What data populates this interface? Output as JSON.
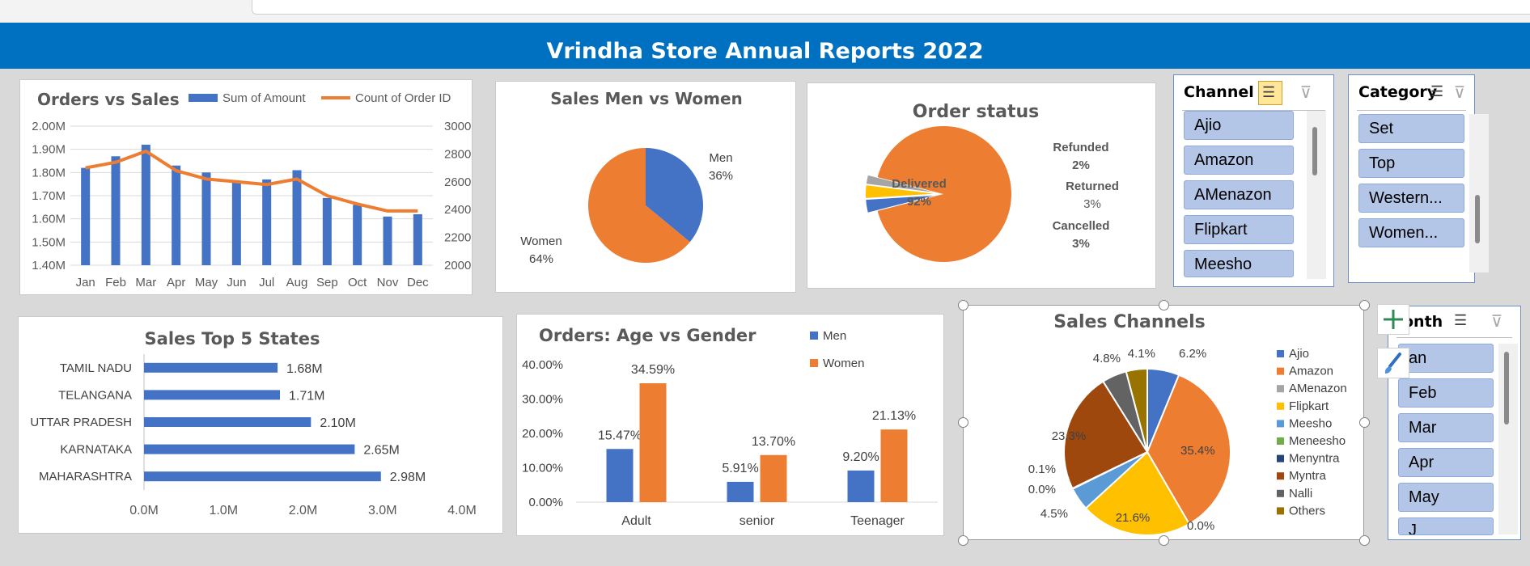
{
  "page": {
    "title": "Vrindha Store Annual Reports 2022"
  },
  "colors": {
    "blue": "#4472c4",
    "orange": "#ed7d31",
    "gray": "#a5a5a5",
    "yellow": "#ffc000",
    "lightblue": "#5b9bd5",
    "green": "#70ad47",
    "navy": "#264478",
    "brown": "#9e480e",
    "darkgray": "#636363",
    "olive": "#997300",
    "header": "#0070c0",
    "slicer_item": "#b4c6e7"
  },
  "chart_data": [
    {
      "type": "bar",
      "title": "Orders vs Sales",
      "categories": [
        "Jan",
        "Feb",
        "Mar",
        "Apr",
        "May",
        "Jun",
        "Jul",
        "Aug",
        "Sep",
        "Oct",
        "Nov",
        "Dec"
      ],
      "series": [
        {
          "name": "Sum of Amount",
          "type": "bar",
          "axis": "left",
          "values": [
            1.82,
            1.87,
            1.92,
            1.83,
            1.8,
            1.76,
            1.77,
            1.81,
            1.69,
            1.66,
            1.61,
            1.62
          ]
        },
        {
          "name": "Count of Order ID",
          "type": "line",
          "axis": "right",
          "values": [
            2700,
            2740,
            2820,
            2680,
            2620,
            2600,
            2580,
            2620,
            2500,
            2440,
            2390,
            2390
          ]
        }
      ],
      "y_left_ticks": [
        "2.00M",
        "1.90M",
        "1.80M",
        "1.70M",
        "1.60M",
        "1.50M",
        "1.40M"
      ],
      "y_right_ticks": [
        "3000",
        "2800",
        "2600",
        "2400",
        "2200",
        "2000"
      ],
      "ylim_left": [
        1.4,
        2.0
      ],
      "ylim_right": [
        2000,
        3000
      ],
      "legend": "top",
      "grid": true
    },
    {
      "type": "pie",
      "title": "Sales  Men vs Women",
      "slices": [
        {
          "name": "Men",
          "value": 36,
          "label": "36%"
        },
        {
          "name": "Women",
          "value": 64,
          "label": "64%"
        }
      ]
    },
    {
      "type": "pie",
      "title": "Order status",
      "slices": [
        {
          "name": "Delivered",
          "value": 92,
          "label": "92%"
        },
        {
          "name": "Cancelled",
          "value": 3,
          "label": "3%"
        },
        {
          "name": "Returned",
          "value": 3,
          "label": "3%"
        },
        {
          "name": "Refunded",
          "value": 2,
          "label": "2%"
        }
      ]
    },
    {
      "type": "bar",
      "orientation": "horizontal",
      "title": "Sales Top 5 States",
      "categories": [
        "TAMIL NADU",
        "TELANGANA",
        "UTTAR PRADESH",
        "KARNATAKA",
        "MAHARASHTRA"
      ],
      "values": [
        1.68,
        1.71,
        2.1,
        2.65,
        2.98
      ],
      "value_labels": [
        "1.68M",
        "1.71M",
        "2.10M",
        "2.65M",
        "2.98M"
      ],
      "x_ticks": [
        "0.0M",
        "1.0M",
        "2.0M",
        "3.0M",
        "4.0M"
      ],
      "xlim": [
        0,
        4
      ]
    },
    {
      "type": "bar",
      "title": "Orders: Age vs Gender",
      "categories": [
        "Adult",
        "senior",
        "Teenager"
      ],
      "series": [
        {
          "name": "Men",
          "values": [
            15.47,
            5.91,
            9.2
          ],
          "labels": [
            "15.47%",
            "5.91%",
            "9.20%"
          ]
        },
        {
          "name": "Women",
          "values": [
            34.59,
            13.7,
            21.13
          ],
          "labels": [
            "34.59%",
            "13.70%",
            "21.13%"
          ]
        }
      ],
      "y_ticks": [
        "40.00%",
        "30.00%",
        "20.00%",
        "10.00%",
        "0.00%"
      ],
      "ylim": [
        0,
        40
      ],
      "legend": "top-right"
    },
    {
      "type": "pie",
      "title": "Sales Channels",
      "slices": [
        {
          "name": "Ajio",
          "value": 6.2,
          "label": "6.2%"
        },
        {
          "name": "Amazon",
          "value": 35.4,
          "label": "35.4%"
        },
        {
          "name": "AMenazon",
          "value": 0.0,
          "label": "0.0%"
        },
        {
          "name": "Flipkart",
          "value": 21.6,
          "label": "21.6%"
        },
        {
          "name": "Meesho",
          "value": 4.5,
          "label": "4.5%"
        },
        {
          "name": "Meneesho",
          "value": 0.0,
          "label": "0.0%"
        },
        {
          "name": "Menyntra",
          "value": 0.1,
          "label": "0.1%"
        },
        {
          "name": "Myntra",
          "value": 23.3,
          "label": "23.3%"
        },
        {
          "name": "Nalli",
          "value": 4.8,
          "label": "4.8%"
        },
        {
          "name": "Others",
          "value": 4.1,
          "label": "4.1%"
        }
      ],
      "legend": "right"
    }
  ],
  "slicers": {
    "channel": {
      "title": "Channel",
      "items": [
        "Ajio",
        "Amazon",
        "AMenazon",
        "Flipkart",
        "Meesho"
      ],
      "multiselect_icon": "multiselect-icon",
      "clear_icon": "clear-filter-icon"
    },
    "category": {
      "title": "Category",
      "items": [
        "Set",
        "Top",
        "Western...",
        "Women..."
      ],
      "multiselect_icon": "multiselect-icon",
      "clear_icon": "clear-filter-icon"
    },
    "month": {
      "title": "onth",
      "items": [
        "an",
        "Feb",
        "Mar",
        "Apr",
        "May",
        "J"
      ],
      "multiselect_icon": "multiselect-icon",
      "clear_icon": "clear-filter-icon"
    }
  },
  "tools": {
    "add_icon": "plus-icon",
    "style_icon": "brush-icon"
  }
}
